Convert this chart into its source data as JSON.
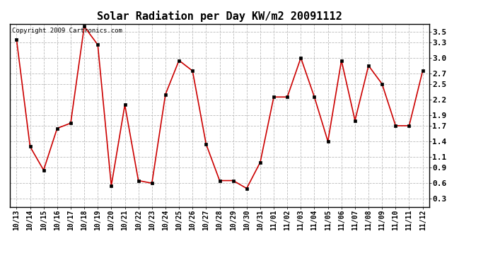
{
  "title": "Solar Radiation per Day KW/m2 20091112",
  "copyright": "Copyright 2009 Cartronics.com",
  "labels": [
    "10/13",
    "10/14",
    "10/15",
    "10/16",
    "10/17",
    "10/18",
    "10/19",
    "10/20",
    "10/21",
    "10/22",
    "10/23",
    "10/24",
    "10/25",
    "10/26",
    "10/27",
    "10/28",
    "10/29",
    "10/30",
    "10/31",
    "11/01",
    "11/02",
    "11/03",
    "11/04",
    "11/05",
    "11/06",
    "11/07",
    "11/08",
    "11/09",
    "11/10",
    "11/11",
    "11/12"
  ],
  "values": [
    3.35,
    1.3,
    0.85,
    1.65,
    1.75,
    3.6,
    3.25,
    0.55,
    2.1,
    0.65,
    0.6,
    2.3,
    2.95,
    2.75,
    1.35,
    0.65,
    0.65,
    0.5,
    1.0,
    2.25,
    2.25,
    3.0,
    2.25,
    1.4,
    2.95,
    1.8,
    2.85,
    2.5,
    1.7,
    1.7,
    2.75
  ],
  "line_color": "#cc0000",
  "marker": "s",
  "marker_size": 2.5,
  "background_color": "#ffffff",
  "grid_color": "#bbbbbb",
  "yticks": [
    0.3,
    0.6,
    0.9,
    1.1,
    1.4,
    1.7,
    1.9,
    2.2,
    2.5,
    2.7,
    3.0,
    3.3,
    3.5
  ],
  "ylim": [
    0.15,
    3.65
  ],
  "title_fontsize": 11,
  "copyright_fontsize": 6.5,
  "tick_fontsize": 7,
  "ytick_fontsize": 8
}
